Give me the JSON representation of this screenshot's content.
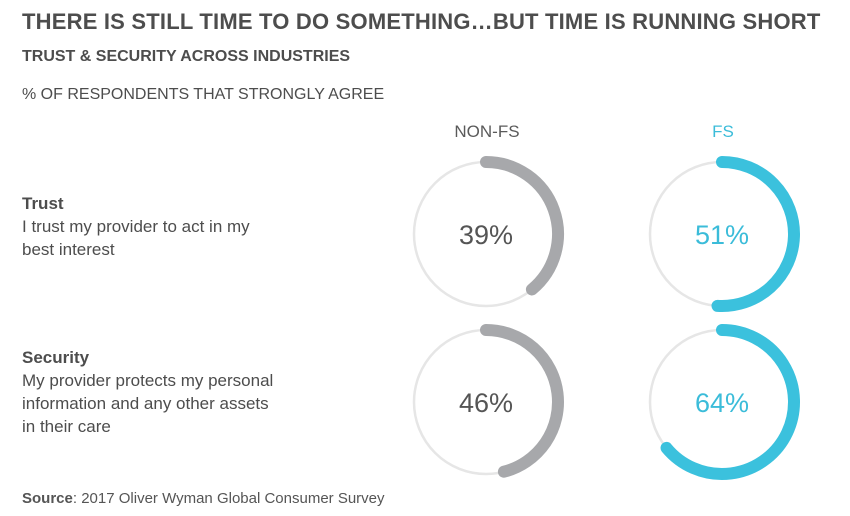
{
  "header": {
    "title": "THERE IS STILL TIME TO DO SOMETHING…BUT TIME IS RUNNING SHORT",
    "subtitle": "TRUST & SECURITY ACROSS INDUSTRIES",
    "measure": "% OF RESPONDENTS THAT STRONGLY AGREE"
  },
  "columns": {
    "nonfs": "NON-FS",
    "fs": "FS"
  },
  "rows": {
    "trust": {
      "title": "Trust",
      "desc": "I trust my provider to act in my best interest"
    },
    "security": {
      "title": "Security",
      "desc": "My provider protects my personal information and any other assets in their care"
    }
  },
  "source": {
    "label": "Source",
    "text": ": 2017 Oliver Wyman Global Consumer Survey"
  },
  "chart_data": {
    "type": "donut",
    "categories": [
      "Trust",
      "Security"
    ],
    "series": [
      {
        "name": "NON-FS",
        "values": [
          39,
          46
        ],
        "labels": [
          "39%",
          "46%"
        ],
        "color": "#a7a8ab"
      },
      {
        "name": "FS",
        "values": [
          51,
          64
        ],
        "labels": [
          "51%",
          "64%"
        ],
        "color": "#3bc1dd"
      }
    ],
    "track_color": "#e6e6e6",
    "label_color_nonfs": "#555555",
    "label_color_fs": "#3bbcd9",
    "max": 100
  }
}
